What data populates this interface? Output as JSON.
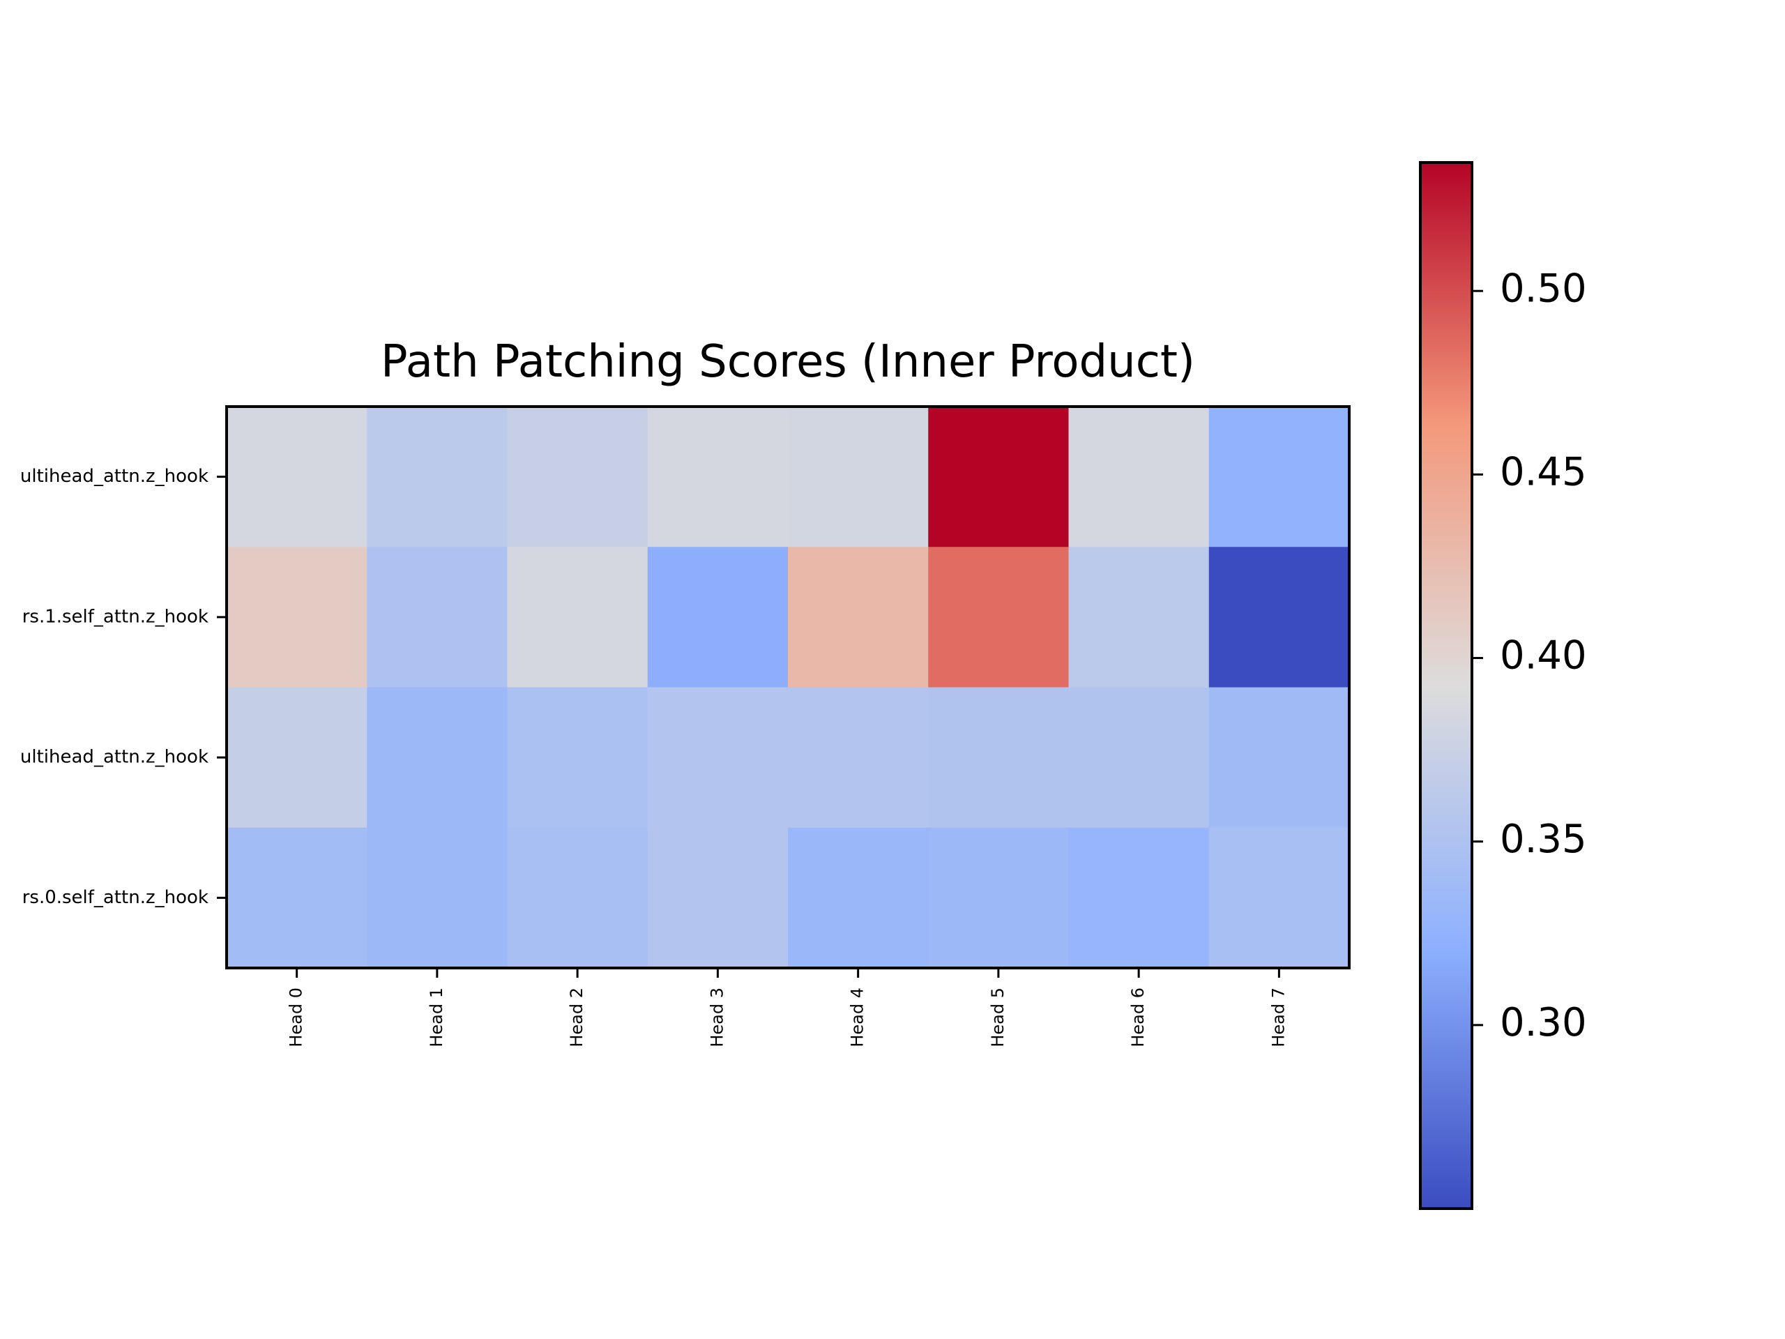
{
  "chart_data": {
    "type": "heatmap",
    "title": "Path Patching Scores (Inner Product)",
    "xlabel": "",
    "ylabel": "",
    "x_categories": [
      "Head 0",
      "Head 1",
      "Head 2",
      "Head 3",
      "Head 4",
      "Head 5",
      "Head 6",
      "Head 7"
    ],
    "y_categories": [
      "ultihead_attn.z_hook",
      "rs.1.self_attn.z_hook",
      "ultihead_attn.z_hook",
      "rs.0.self_attn.z_hook"
    ],
    "values": [
      [
        0.385,
        0.362,
        0.372,
        0.385,
        0.382,
        0.535,
        0.385,
        0.325
      ],
      [
        0.41,
        0.35,
        0.385,
        0.32,
        0.43,
        0.485,
        0.362,
        0.25
      ],
      [
        0.37,
        0.335,
        0.348,
        0.355,
        0.355,
        0.352,
        0.352,
        0.338
      ],
      [
        0.34,
        0.335,
        0.345,
        0.355,
        0.332,
        0.335,
        0.33,
        0.345
      ]
    ],
    "colormap": "coolwarm",
    "color_range": [
      0.25,
      0.535
    ],
    "colorbar_ticks": [
      0.3,
      0.35,
      0.4,
      0.45,
      0.5
    ],
    "colorbar_tick_labels": [
      "0.30",
      "0.35",
      "0.40",
      "0.45",
      "0.50"
    ]
  }
}
